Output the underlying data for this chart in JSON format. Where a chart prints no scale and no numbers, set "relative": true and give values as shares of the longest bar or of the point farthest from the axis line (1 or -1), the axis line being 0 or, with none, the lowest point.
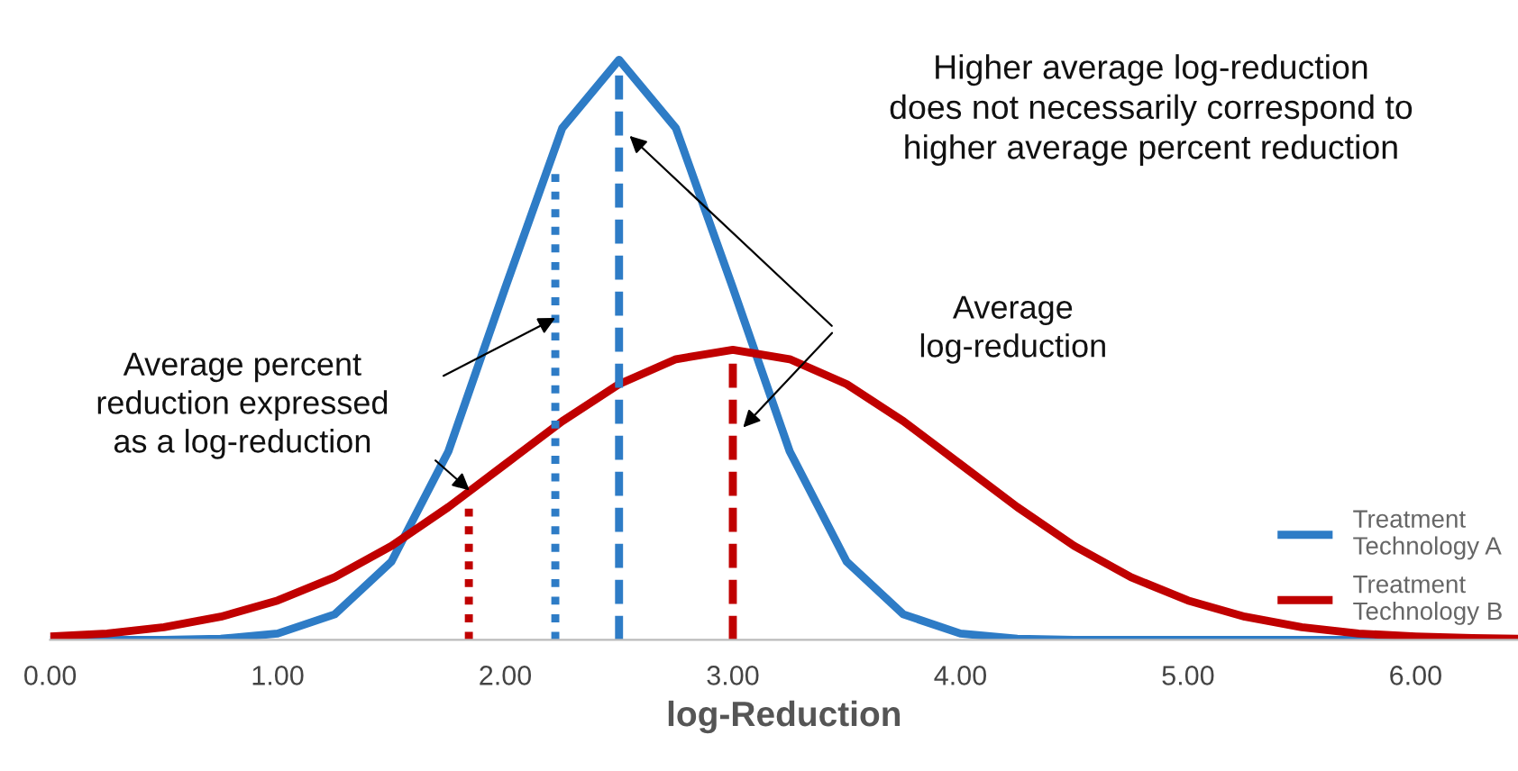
{
  "chart_data": {
    "type": "line",
    "relative": true,
    "xlabel": "log-Reduction",
    "x": [
      0,
      0.25,
      0.5,
      0.75,
      1.0,
      1.25,
      1.5,
      1.75,
      2.0,
      2.25,
      2.5,
      2.75,
      3.0,
      3.25,
      3.5,
      3.75,
      4.0,
      4.25,
      4.5,
      4.75,
      5.0,
      5.25,
      5.5,
      5.75,
      6.0,
      6.25,
      6.45
    ],
    "series": [
      {
        "name": "Treatment\nTechnology A",
        "color": "#2e7cc6",
        "values": [
          0,
          0,
          0,
          0.002,
          0.011,
          0.044,
          0.135,
          0.325,
          0.607,
          0.882,
          1,
          0.882,
          0.607,
          0.325,
          0.135,
          0.044,
          0.011,
          0.002,
          0,
          0,
          0,
          0,
          0,
          0,
          0,
          null,
          null
        ]
      },
      {
        "name": "Treatment\nTechnology B",
        "color": "#c00000",
        "values": [
          0.006,
          0.011,
          0.022,
          0.04,
          0.068,
          0.108,
          0.162,
          0.229,
          0.303,
          0.377,
          0.441,
          0.484,
          0.5,
          0.484,
          0.441,
          0.377,
          0.303,
          0.229,
          0.162,
          0.108,
          0.068,
          0.04,
          0.022,
          0.011,
          0.006,
          0.003,
          0.002
        ]
      },
      {
        "color": "#2e7cc6",
        "x": [
          2.5,
          2.5
        ],
        "values": [
          0,
          1
        ],
        "line_style": "dashed"
      },
      {
        "color": "#c00000",
        "x": [
          3.0,
          3.0
        ],
        "values": [
          0,
          0.5
        ],
        "line_style": "dashed"
      },
      {
        "color": "#2e7cc6",
        "x": [
          2.22,
          2.22
        ],
        "values": [
          0,
          0.81
        ],
        "line_style": "dotted"
      },
      {
        "color": "#c00000",
        "x": [
          1.84,
          1.84
        ],
        "values": [
          0,
          0.24
        ],
        "line_style": "dotted"
      }
    ],
    "xlim": [
      0,
      6.45
    ],
    "xticks": [
      {
        "value": 0,
        "label": "0.00"
      },
      {
        "value": 1,
        "label": "1.00"
      },
      {
        "value": 2,
        "label": "2.00"
      },
      {
        "value": 3,
        "label": "3.00"
      },
      {
        "value": 4,
        "label": "4.00"
      },
      {
        "value": 5,
        "label": "5.00"
      },
      {
        "value": 6,
        "label": "6.00"
      }
    ],
    "annotations": [
      "Higher average log-reduction\ndoes not necessarily correspond to\nhigher average percent reduction",
      "Average\nlog-reduction",
      "Average percent\nreduction expressed\nas a log-reduction"
    ],
    "legend": "bottom right",
    "grid": false
  }
}
